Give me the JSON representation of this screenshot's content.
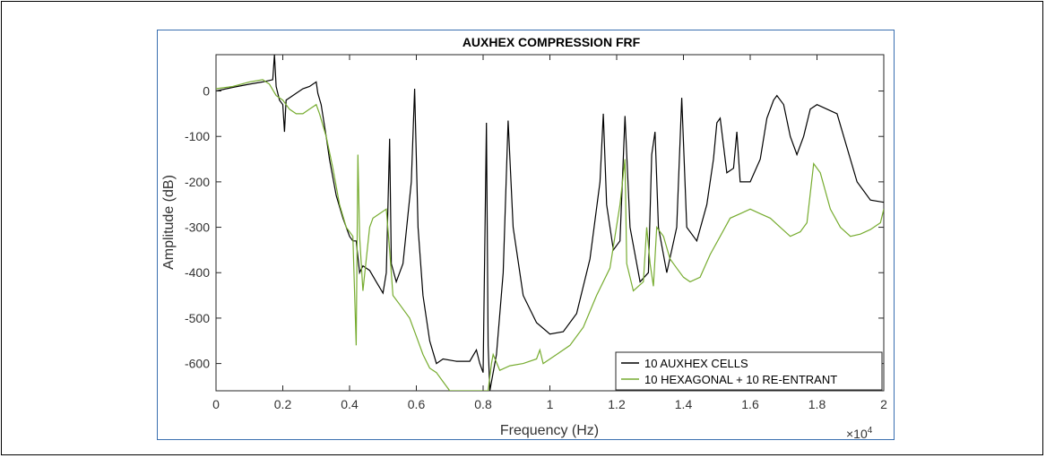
{
  "chart_data": {
    "type": "line",
    "title": "AUXHEX COMPRESSION FRF",
    "xlabel": "Frequency (Hz)",
    "ylabel": "Amplitude (dB)",
    "x_exponent_label": "×10",
    "x_exponent_power": "4",
    "xlim": [
      0,
      20000
    ],
    "ylim": [
      -660,
      80
    ],
    "xticks": [
      0,
      2000,
      4000,
      6000,
      8000,
      10000,
      12000,
      14000,
      16000,
      18000,
      20000
    ],
    "xticklabels": [
      "0",
      "0.2",
      "0.4",
      "0.6",
      "0.8",
      "1",
      "1.2",
      "1.4",
      "1.6",
      "1.8",
      "2"
    ],
    "yticks": [
      0,
      -100,
      -200,
      -300,
      -400,
      -500,
      -600
    ],
    "yticklabels": [
      "0",
      "-100",
      "-200",
      "-300",
      "-400",
      "-500",
      "-600"
    ],
    "grid": false,
    "legend_position": "bottom-right",
    "series": [
      {
        "name": "10 AUXHEX CELLS",
        "color": "#000000",
        "points": [
          [
            0,
            0
          ],
          [
            500,
            8
          ],
          [
            1000,
            15
          ],
          [
            1400,
            20
          ],
          [
            1700,
            25
          ],
          [
            1750,
            80
          ],
          [
            1800,
            10
          ],
          [
            1900,
            -20
          ],
          [
            2000,
            -30
          ],
          [
            2050,
            -90
          ],
          [
            2100,
            -20
          ],
          [
            2300,
            -10
          ],
          [
            2600,
            5
          ],
          [
            2800,
            10
          ],
          [
            3000,
            20
          ],
          [
            3050,
            -5
          ],
          [
            3150,
            -30
          ],
          [
            3300,
            -100
          ],
          [
            3400,
            -150
          ],
          [
            3600,
            -230
          ],
          [
            3800,
            -280
          ],
          [
            4000,
            -320
          ],
          [
            4100,
            -330
          ],
          [
            4200,
            -330
          ],
          [
            4300,
            -400
          ],
          [
            4400,
            -385
          ],
          [
            4600,
            -395
          ],
          [
            4800,
            -420
          ],
          [
            5000,
            -445
          ],
          [
            5100,
            -400
          ],
          [
            5200,
            -105
          ],
          [
            5250,
            -380
          ],
          [
            5400,
            -420
          ],
          [
            5600,
            -380
          ],
          [
            5850,
            -200
          ],
          [
            5950,
            5
          ],
          [
            6050,
            -300
          ],
          [
            6200,
            -450
          ],
          [
            6400,
            -550
          ],
          [
            6600,
            -600
          ],
          [
            6800,
            -590
          ],
          [
            7200,
            -595
          ],
          [
            7600,
            -595
          ],
          [
            7800,
            -570
          ],
          [
            7900,
            -600
          ],
          [
            8000,
            -620
          ],
          [
            8100,
            -70
          ],
          [
            8150,
            -560
          ],
          [
            8200,
            -660
          ],
          [
            8400,
            -580
          ],
          [
            8600,
            -400
          ],
          [
            8750,
            -65
          ],
          [
            8900,
            -300
          ],
          [
            9200,
            -450
          ],
          [
            9600,
            -510
          ],
          [
            10000,
            -535
          ],
          [
            10400,
            -530
          ],
          [
            10800,
            -490
          ],
          [
            11200,
            -370
          ],
          [
            11500,
            -200
          ],
          [
            11600,
            -50
          ],
          [
            11700,
            -250
          ],
          [
            11900,
            -350
          ],
          [
            12100,
            -330
          ],
          [
            12250,
            -55
          ],
          [
            12400,
            -300
          ],
          [
            12700,
            -420
          ],
          [
            12950,
            -400
          ],
          [
            13050,
            -140
          ],
          [
            13150,
            -90
          ],
          [
            13250,
            -300
          ],
          [
            13500,
            -400
          ],
          [
            13800,
            -300
          ],
          [
            13950,
            -15
          ],
          [
            14100,
            -300
          ],
          [
            14400,
            -330
          ],
          [
            14700,
            -250
          ],
          [
            14900,
            -150
          ],
          [
            15000,
            -70
          ],
          [
            15100,
            -60
          ],
          [
            15300,
            -180
          ],
          [
            15500,
            -170
          ],
          [
            15600,
            -90
          ],
          [
            15700,
            -200
          ],
          [
            16000,
            -200
          ],
          [
            16300,
            -150
          ],
          [
            16500,
            -60
          ],
          [
            16700,
            -20
          ],
          [
            16800,
            -10
          ],
          [
            17000,
            -30
          ],
          [
            17200,
            -100
          ],
          [
            17400,
            -140
          ],
          [
            17600,
            -100
          ],
          [
            17800,
            -40
          ],
          [
            18000,
            -30
          ],
          [
            18300,
            -40
          ],
          [
            18600,
            -50
          ],
          [
            18800,
            -100
          ],
          [
            19200,
            -200
          ],
          [
            19600,
            -240
          ],
          [
            20000,
            -245
          ]
        ]
      },
      {
        "name": "10 HEXAGONAL + 10 RE-ENTRANT",
        "color": "#77ac30",
        "points": [
          [
            0,
            5
          ],
          [
            500,
            10
          ],
          [
            1000,
            20
          ],
          [
            1400,
            25
          ],
          [
            1600,
            15
          ],
          [
            1800,
            -10
          ],
          [
            2000,
            -20
          ],
          [
            2200,
            -40
          ],
          [
            2400,
            -50
          ],
          [
            2600,
            -50
          ],
          [
            2800,
            -40
          ],
          [
            3000,
            -30
          ],
          [
            3100,
            -50
          ],
          [
            3300,
            -100
          ],
          [
            3500,
            -170
          ],
          [
            3700,
            -250
          ],
          [
            3900,
            -300
          ],
          [
            4100,
            -320
          ],
          [
            4200,
            -560
          ],
          [
            4250,
            -140
          ],
          [
            4300,
            -320
          ],
          [
            4400,
            -440
          ],
          [
            4600,
            -300
          ],
          [
            4700,
            -280
          ],
          [
            4900,
            -270
          ],
          [
            5100,
            -260
          ],
          [
            5200,
            -350
          ],
          [
            5300,
            -450
          ],
          [
            5500,
            -470
          ],
          [
            5800,
            -500
          ],
          [
            6000,
            -540
          ],
          [
            6200,
            -580
          ],
          [
            6400,
            -610
          ],
          [
            6600,
            -620
          ],
          [
            6800,
            -640
          ],
          [
            7000,
            -660
          ],
          [
            8150,
            -660
          ],
          [
            8250,
            -600
          ],
          [
            8300,
            -580
          ],
          [
            8500,
            -615
          ],
          [
            8800,
            -605
          ],
          [
            9200,
            -600
          ],
          [
            9600,
            -590
          ],
          [
            9700,
            -570
          ],
          [
            9800,
            -600
          ],
          [
            10200,
            -580
          ],
          [
            10600,
            -560
          ],
          [
            11000,
            -520
          ],
          [
            11400,
            -450
          ],
          [
            11800,
            -390
          ],
          [
            12100,
            -250
          ],
          [
            12250,
            -150
          ],
          [
            12300,
            -380
          ],
          [
            12500,
            -440
          ],
          [
            12800,
            -420
          ],
          [
            12900,
            -300
          ],
          [
            13000,
            -380
          ],
          [
            13100,
            -430
          ],
          [
            13200,
            -300
          ],
          [
            13400,
            -320
          ],
          [
            13600,
            -370
          ],
          [
            13800,
            -390
          ],
          [
            14000,
            -410
          ],
          [
            14200,
            -420
          ],
          [
            14500,
            -410
          ],
          [
            14800,
            -360
          ],
          [
            15100,
            -320
          ],
          [
            15400,
            -280
          ],
          [
            15700,
            -270
          ],
          [
            16000,
            -260
          ],
          [
            16300,
            -270
          ],
          [
            16600,
            -280
          ],
          [
            16900,
            -300
          ],
          [
            17200,
            -320
          ],
          [
            17500,
            -310
          ],
          [
            17700,
            -290
          ],
          [
            17900,
            -160
          ],
          [
            18100,
            -180
          ],
          [
            18400,
            -260
          ],
          [
            18700,
            -300
          ],
          [
            19000,
            -320
          ],
          [
            19300,
            -315
          ],
          [
            19600,
            -305
          ],
          [
            19900,
            -290
          ],
          [
            20000,
            -260
          ]
        ]
      }
    ]
  }
}
